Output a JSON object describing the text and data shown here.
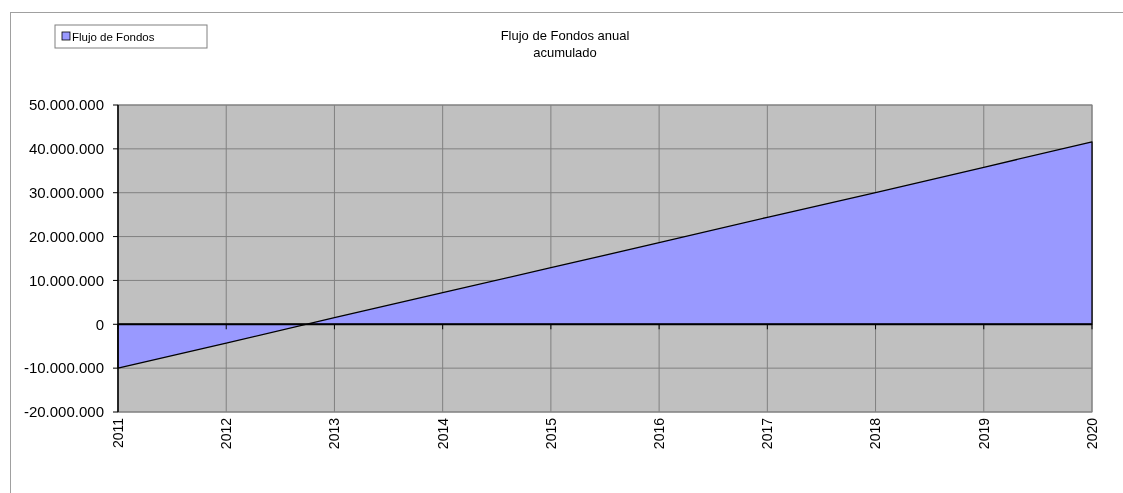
{
  "chart_data": {
    "type": "area",
    "title": "Flujo de Fondos anual\nacumulado",
    "categories": [
      "2011",
      "2012",
      "2013",
      "2014",
      "2015",
      "2016",
      "2017",
      "2018",
      "2019",
      "2020"
    ],
    "series": [
      {
        "name": "Flujo de Fondos",
        "color": "#9999ff",
        "values": [
          -10000000,
          -4300000,
          1500000,
          7200000,
          12900000,
          18600000,
          24400000,
          30000000,
          35800000,
          41600000
        ]
      }
    ],
    "ylim": [
      -20000000,
      50000000
    ],
    "yticks": [
      {
        "value": -20000000,
        "label": "-20.000.000"
      },
      {
        "value": -10000000,
        "label": "-10.000.000"
      },
      0,
      {
        "value": 10000000,
        "label": "10.000.000"
      },
      {
        "value": 20000000,
        "label": "20.000.000"
      },
      {
        "value": 30000000,
        "label": "30.000.000"
      },
      {
        "value": 40000000,
        "label": "40.000.000"
      },
      {
        "value": 50000000,
        "label": "50.000.000"
      }
    ],
    "grid": true,
    "legend": "top left"
  }
}
